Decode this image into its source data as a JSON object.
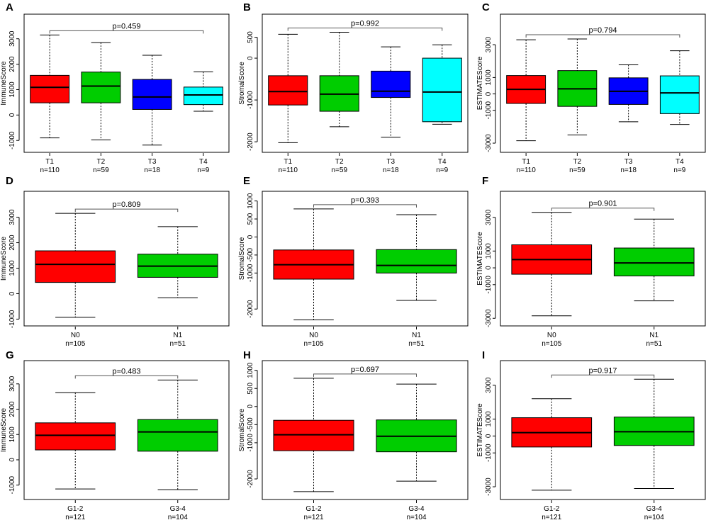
{
  "figure": {
    "title": ""
  },
  "chart_data": [
    {
      "type": "boxplot",
      "panel": "A",
      "ylabel": "ImmuneScore",
      "ylim": [
        -1300,
        3800
      ],
      "yticks": [
        -1000,
        0,
        1000,
        2000,
        3000
      ],
      "pvalue": "p=0.459",
      "comparison": [
        0,
        3
      ],
      "groups": [
        {
          "label": "T1",
          "n": "n=110",
          "color": "#ff0000",
          "min": -900,
          "q1": 480,
          "median": 1090,
          "q3": 1560,
          "max": 3150
        },
        {
          "label": "T2",
          "n": "n=59",
          "color": "#00cd00",
          "min": -980,
          "q1": 480,
          "median": 1140,
          "q3": 1690,
          "max": 2850
        },
        {
          "label": "T3",
          "n": "n=18",
          "color": "#0000ff",
          "min": -1180,
          "q1": 220,
          "median": 710,
          "q3": 1400,
          "max": 2350
        },
        {
          "label": "T4",
          "n": "n=9",
          "color": "#00ffff",
          "min": 150,
          "q1": 410,
          "median": 790,
          "q3": 1100,
          "max": 1700
        }
      ]
    },
    {
      "type": "boxplot",
      "panel": "B",
      "ylabel": "StromalScore",
      "ylim": [
        -2150,
        950
      ],
      "yticks": [
        -2000,
        -1000,
        0,
        500
      ],
      "pvalue": "p=0.992",
      "comparison": [
        0,
        3
      ],
      "groups": [
        {
          "label": "T1",
          "n": "n=110",
          "color": "#ff0000",
          "min": -2020,
          "q1": -1120,
          "median": -800,
          "q3": -420,
          "max": 570
        },
        {
          "label": "T2",
          "n": "n=59",
          "color": "#00cd00",
          "min": -1640,
          "q1": -1270,
          "median": -860,
          "q3": -420,
          "max": 620
        },
        {
          "label": "T3",
          "n": "n=18",
          "color": "#0000ff",
          "min": -1890,
          "q1": -940,
          "median": -790,
          "q3": -310,
          "max": 270
        },
        {
          "label": "T4",
          "n": "n=9",
          "color": "#00ffff",
          "min": -1580,
          "q1": -1520,
          "median": -810,
          "q3": 0,
          "max": 320
        }
      ]
    },
    {
      "type": "boxplot",
      "panel": "C",
      "ylabel": "ESTIMATEScore",
      "ylim": [
        -3300,
        4600
      ],
      "yticks": [
        -3000,
        -1000,
        0,
        1000,
        3000
      ],
      "pvalue": "p=0.794",
      "comparison": [
        0,
        3
      ],
      "groups": [
        {
          "label": "T1",
          "n": "n=110",
          "color": "#ff0000",
          "min": -2850,
          "q1": -580,
          "median": 280,
          "q3": 1120,
          "max": 3300
        },
        {
          "label": "T2",
          "n": "n=59",
          "color": "#00cd00",
          "min": -2500,
          "q1": -760,
          "median": 310,
          "q3": 1420,
          "max": 3350
        },
        {
          "label": "T3",
          "n": "n=18",
          "color": "#0000ff",
          "min": -1700,
          "q1": -640,
          "median": 160,
          "q3": 980,
          "max": 1770
        },
        {
          "label": "T4",
          "n": "n=9",
          "color": "#00ffff",
          "min": -1860,
          "q1": -1200,
          "median": 60,
          "q3": 1100,
          "max": 2630
        }
      ]
    },
    {
      "type": "boxplot",
      "panel": "D",
      "ylabel": "ImmuneScore",
      "ylim": [
        -1100,
        3850
      ],
      "yticks": [
        -1000,
        0,
        1000,
        2000,
        3000
      ],
      "pvalue": "p=0.809",
      "comparison": [
        0,
        1
      ],
      "groups": [
        {
          "label": "N0",
          "n": "n=105",
          "color": "#ff0000",
          "min": -930,
          "q1": 440,
          "median": 1150,
          "q3": 1680,
          "max": 3150
        },
        {
          "label": "N1",
          "n": "n=51",
          "color": "#00cd00",
          "min": -160,
          "q1": 640,
          "median": 1080,
          "q3": 1550,
          "max": 2630
        }
      ]
    },
    {
      "type": "boxplot",
      "panel": "E",
      "ylabel": "StromalScore",
      "ylim": [
        -2350,
        1150
      ],
      "yticks": [
        -2000,
        -1000,
        -500,
        0,
        500,
        1000
      ],
      "pvalue": "p=0.393",
      "comparison": [
        0,
        1
      ],
      "groups": [
        {
          "label": "N0",
          "n": "n=105",
          "color": "#ff0000",
          "min": -2300,
          "q1": -1170,
          "median": -770,
          "q3": -360,
          "max": 780
        },
        {
          "label": "N1",
          "n": "n=51",
          "color": "#00cd00",
          "min": -1760,
          "q1": -1000,
          "median": -790,
          "q3": -350,
          "max": 620
        }
      ]
    },
    {
      "type": "boxplot",
      "panel": "F",
      "ylabel": "ESTIMATEScore",
      "ylim": [
        -3200,
        4300
      ],
      "yticks": [
        -3000,
        -1000,
        0,
        1000,
        3000
      ],
      "pvalue": "p=0.901",
      "comparison": [
        0,
        1
      ],
      "groups": [
        {
          "label": "N0",
          "n": "n=105",
          "color": "#ff0000",
          "min": -2850,
          "q1": -380,
          "median": 490,
          "q3": 1370,
          "max": 3300
        },
        {
          "label": "N1",
          "n": "n=51",
          "color": "#00cd00",
          "min": -1960,
          "q1": -480,
          "median": 290,
          "q3": 1180,
          "max": 2900
        }
      ]
    },
    {
      "type": "boxplot",
      "panel": "G",
      "ylabel": "ImmuneScore",
      "ylim": [
        -1400,
        3750
      ],
      "yticks": [
        -1000,
        0,
        1000,
        2000,
        3000
      ],
      "pvalue": "p=0.483",
      "comparison": [
        0,
        1
      ],
      "groups": [
        {
          "label": "G1-2",
          "n": "n=121",
          "color": "#ff0000",
          "min": -1150,
          "q1": 390,
          "median": 970,
          "q3": 1460,
          "max": 2650
        },
        {
          "label": "G3-4",
          "n": "n=104",
          "color": "#00cd00",
          "min": -1180,
          "q1": 340,
          "median": 1100,
          "q3": 1590,
          "max": 3150
        }
      ]
    },
    {
      "type": "boxplot",
      "panel": "H",
      "ylabel": "StromalScore",
      "ylim": [
        -2450,
        1150
      ],
      "yticks": [
        -2000,
        -1000,
        -500,
        0,
        500,
        1000
      ],
      "pvalue": "p=0.697",
      "comparison": [
        0,
        1
      ],
      "groups": [
        {
          "label": "G1-2",
          "n": "n=121",
          "color": "#ff0000",
          "min": -2350,
          "q1": -1220,
          "median": -780,
          "q3": -380,
          "max": 780
        },
        {
          "label": "G3-4",
          "n": "n=104",
          "color": "#00cd00",
          "min": -2060,
          "q1": -1250,
          "median": -820,
          "q3": -370,
          "max": 620
        }
      ]
    },
    {
      "type": "boxplot",
      "panel": "I",
      "ylabel": "ESTIMATEScore",
      "ylim": [
        -3500,
        4200
      ],
      "yticks": [
        -3000,
        -1000,
        0,
        1000,
        3000
      ],
      "pvalue": "p=0.917",
      "comparison": [
        0,
        1
      ],
      "groups": [
        {
          "label": "G1-2",
          "n": "n=121",
          "color": "#ff0000",
          "min": -3200,
          "q1": -650,
          "median": 200,
          "q3": 1080,
          "max": 2200
        },
        {
          "label": "G3-4",
          "n": "n=104",
          "color": "#00cd00",
          "min": -3100,
          "q1": -560,
          "median": 250,
          "q3": 1120,
          "max": 3350
        }
      ]
    }
  ]
}
